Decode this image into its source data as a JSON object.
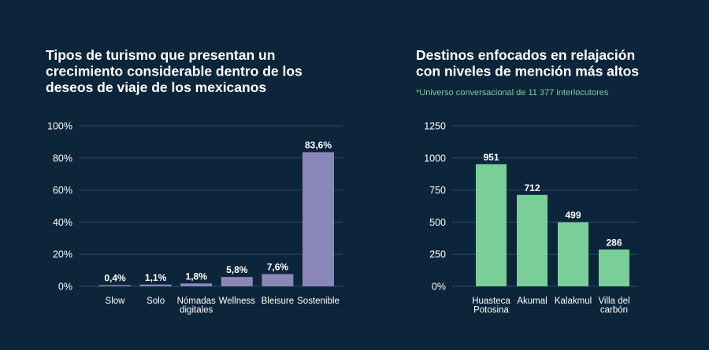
{
  "colors": {
    "background": "#0c253b",
    "bar_left": "#8b87b8",
    "bar_right": "#7acf98",
    "grid": "#294a63",
    "text": "#ffffff",
    "note": "#7acf98"
  },
  "chart_data": [
    {
      "type": "bar",
      "title_lines": [
        "Tipos de turismo que presentan un",
        "crecimiento considerable dentro de los",
        "deseos de viaje de los mexicanos"
      ],
      "categories": [
        [
          "Slow"
        ],
        [
          "Solo"
        ],
        [
          "Nómadas",
          "digitales"
        ],
        [
          "Wellness"
        ],
        [
          "Bleisure"
        ],
        [
          "Sostenible"
        ]
      ],
      "values": [
        0.4,
        1.1,
        1.8,
        5.8,
        7.6,
        83.6
      ],
      "value_labels": [
        "0,4%",
        "1,1%",
        "1,8%",
        "5,8%",
        "7,6%",
        "83,6%"
      ],
      "yticks": [
        0,
        20,
        40,
        60,
        80,
        100
      ],
      "ytick_labels": [
        "0%",
        "20%",
        "40%",
        "60%",
        "80%",
        "100%"
      ],
      "ylim": [
        0,
        100
      ],
      "xlabel": "",
      "ylabel": ""
    },
    {
      "type": "bar",
      "title_lines": [
        "Destinos enfocados en relajación",
        "con niveles de mención más altos"
      ],
      "subtitle": "*Universo conversacional de 11 377 interlocutores",
      "categories": [
        [
          "Huasteca",
          "Potosina"
        ],
        [
          "Akumal"
        ],
        [
          "Kalakmul"
        ],
        [
          "Villa del",
          "carbón"
        ]
      ],
      "values": [
        951,
        712,
        499,
        286
      ],
      "value_labels": [
        "951",
        "712",
        "499",
        "286"
      ],
      "yticks": [
        0,
        250,
        500,
        750,
        1000,
        1250
      ],
      "ytick_labels": [
        "0%",
        "250",
        "500",
        "750",
        "1000",
        "1250"
      ],
      "ylim": [
        0,
        1250
      ],
      "xlabel": "",
      "ylabel": ""
    }
  ]
}
